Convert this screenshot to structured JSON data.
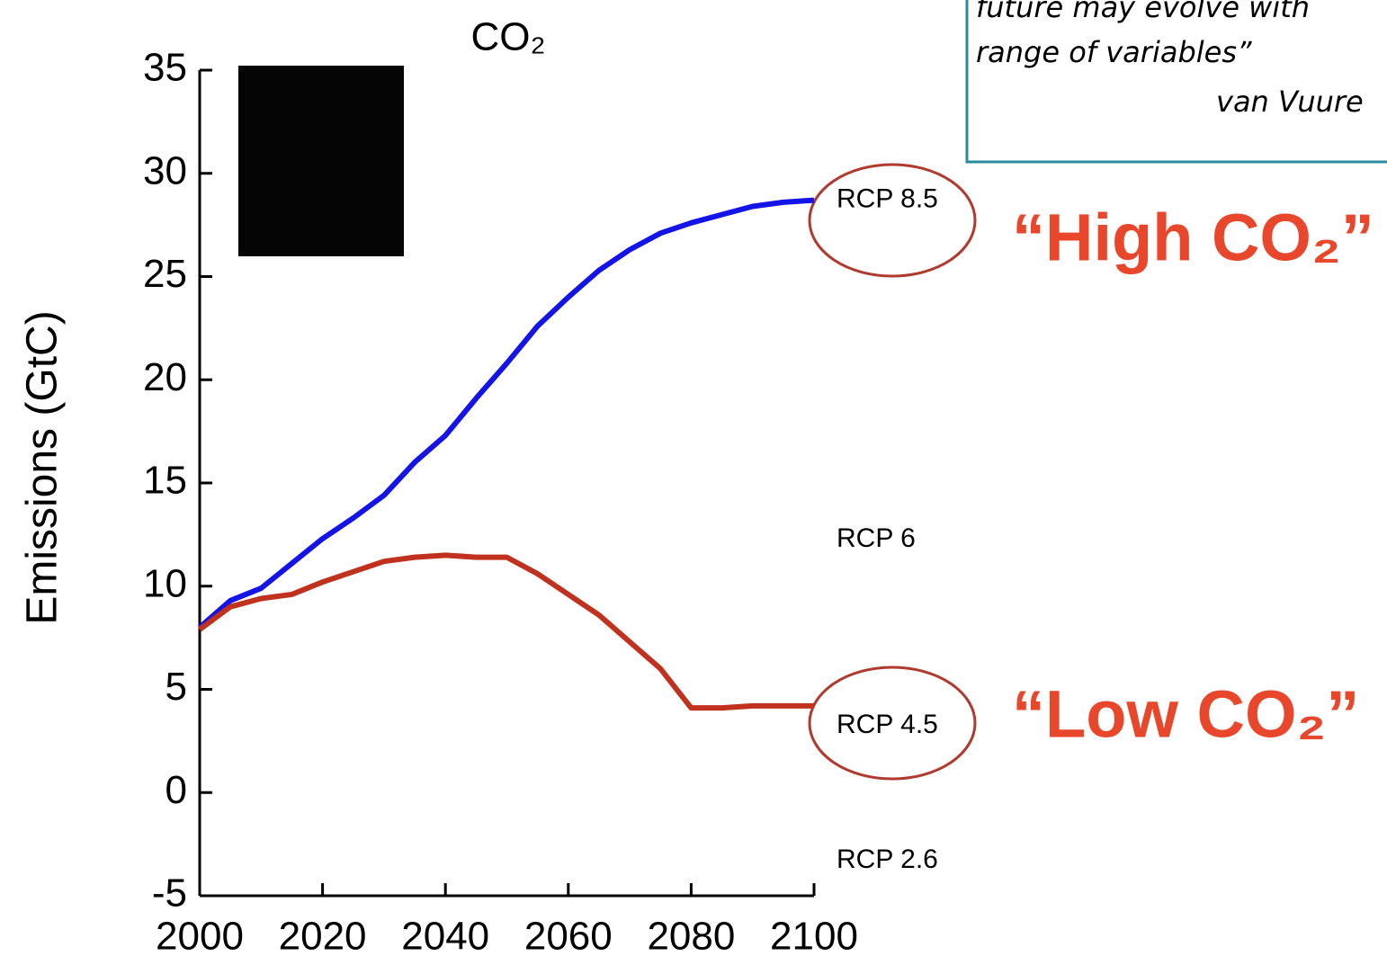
{
  "chart_data": {
    "type": "line",
    "title": "CO₂",
    "ylabel": "Emissions (GtC)",
    "x": [
      2000,
      2005,
      2010,
      2015,
      2020,
      2025,
      2030,
      2035,
      2040,
      2045,
      2050,
      2055,
      2060,
      2065,
      2070,
      2075,
      2080,
      2085,
      2090,
      2095,
      2100
    ],
    "series": [
      {
        "name": "RCP 8.5",
        "color": "#1414e6",
        "values": [
          8.0,
          9.3,
          9.9,
          11.1,
          12.3,
          13.3,
          14.4,
          16.0,
          17.3,
          19.1,
          20.8,
          22.6,
          24.0,
          25.3,
          26.3,
          27.1,
          27.6,
          28.0,
          28.4,
          28.6,
          28.7
        ]
      },
      {
        "name": "RCP 4.5",
        "color": "#c0321e",
        "values": [
          7.9,
          9.0,
          9.4,
          9.6,
          10.2,
          10.7,
          11.2,
          11.4,
          11.5,
          11.4,
          11.4,
          10.6,
          9.6,
          8.6,
          7.3,
          6.0,
          4.1,
          4.1,
          4.2,
          4.2,
          4.2
        ]
      }
    ],
    "xlim": [
      2000,
      2100
    ],
    "xticks": [
      2000,
      2020,
      2040,
      2060,
      2080,
      2100
    ],
    "ylim": [
      -5,
      35
    ],
    "yticks": [
      -5,
      0,
      5,
      10,
      15,
      20,
      25,
      30,
      35
    ],
    "other_labels": [
      "RCP 6",
      "RCP 2.6"
    ],
    "callouts": [
      "“High CO₂”",
      "“Low CO₂”"
    ],
    "quote_lines": [
      "future may evolve with",
      "range of variables”",
      "van Vuure"
    ]
  }
}
